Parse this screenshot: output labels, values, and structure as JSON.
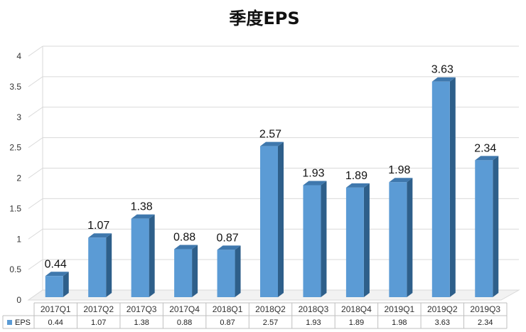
{
  "chart_data": {
    "type": "bar",
    "title": "季度EPS",
    "categories": [
      "2017Q1",
      "2017Q2",
      "2017Q3",
      "2017Q4",
      "2018Q1",
      "2018Q2",
      "2018Q3",
      "2018Q4",
      "2019Q1",
      "2019Q2",
      "2019Q3"
    ],
    "series": [
      {
        "name": "EPS",
        "values": [
          0.44,
          1.07,
          1.38,
          0.88,
          0.87,
          2.57,
          1.93,
          1.89,
          1.98,
          3.63,
          2.34
        ]
      }
    ],
    "data_labels": [
      "0.44",
      "1.07",
      "1.38",
      "0.88",
      "0.87",
      "2.57",
      "1.93",
      "1.89",
      "1.98",
      "3.63",
      "2.34"
    ],
    "table_values": [
      "0.44",
      "1.07",
      "1.38",
      "0.88",
      "0.87",
      "2.57",
      "1.93",
      "1.89",
      "1.98",
      "3.63",
      "2.34"
    ],
    "ylim": [
      0,
      4
    ],
    "yticks": [
      "0",
      "0.5",
      "1",
      "1.5",
      "2",
      "2.5",
      "3",
      "3.5",
      "4"
    ],
    "grid": true,
    "legend": "data-table",
    "bar_color": "#5b9bd5",
    "bar_side_color": "#2e5f8a",
    "bar_top_color": "#3f78ad"
  }
}
